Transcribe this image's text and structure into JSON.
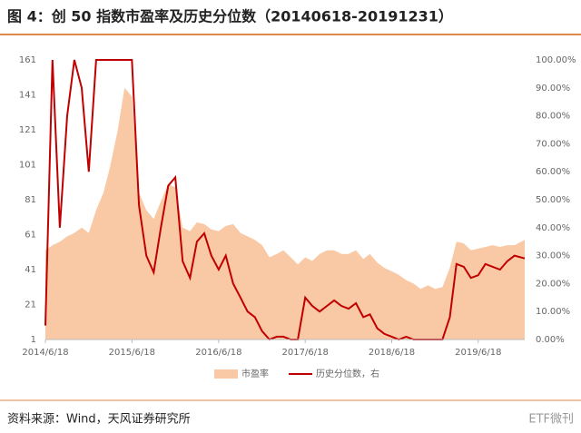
{
  "chart_data": {
    "type": "area-line",
    "title": "图 4：创 50 指数市盈率及历史分位数（20140618-20191231）",
    "source": "资料来源：Wind，天风证券研究所",
    "watermark": "ETF微刊",
    "x": [
      "2014/6/18",
      "2014/7/18",
      "2014/8/18",
      "2014/9/18",
      "2014/10/18",
      "2014/11/18",
      "2014/12/18",
      "2015/1/18",
      "2015/2/18",
      "2015/3/18",
      "2015/4/18",
      "2015/5/18",
      "2015/6/18",
      "2015/7/18",
      "2015/8/18",
      "2015/9/18",
      "2015/10/18",
      "2015/11/18",
      "2015/12/18",
      "2016/1/18",
      "2016/2/18",
      "2016/3/18",
      "2016/4/18",
      "2016/5/18",
      "2016/6/18",
      "2016/7/18",
      "2016/8/18",
      "2016/9/18",
      "2016/10/18",
      "2016/11/18",
      "2016/12/18",
      "2017/1/18",
      "2017/2/18",
      "2017/3/18",
      "2017/4/18",
      "2017/5/18",
      "2017/6/18",
      "2017/7/18",
      "2017/8/18",
      "2017/9/18",
      "2017/10/18",
      "2017/11/18",
      "2017/12/18",
      "2018/1/18",
      "2018/2/18",
      "2018/3/18",
      "2018/4/18",
      "2018/5/18",
      "2018/6/18",
      "2018/7/18",
      "2018/8/18",
      "2018/9/18",
      "2018/10/18",
      "2018/11/18",
      "2018/12/18",
      "2019/1/18",
      "2019/2/18",
      "2019/3/18",
      "2019/4/18",
      "2019/5/18",
      "2019/6/18",
      "2019/7/18",
      "2019/8/18",
      "2019/9/18",
      "2019/10/18",
      "2019/11/18",
      "2019/12/31"
    ],
    "xlim": [
      "2014/6/18",
      "2019/12/31"
    ],
    "xticks": [
      "2014/6/18",
      "2015/6/18",
      "2016/6/18",
      "2017/6/18",
      "2018/6/18",
      "2019/6/18"
    ],
    "series": [
      {
        "name": "市盈率",
        "kind": "area",
        "color": "#f9c9a5",
        "values": [
          52,
          55,
          57,
          60,
          62,
          65,
          62,
          75,
          85,
          100,
          120,
          145,
          140,
          85,
          75,
          70,
          80,
          90,
          88,
          65,
          63,
          68,
          67,
          64,
          63,
          66,
          67,
          62,
          60,
          58,
          55,
          48,
          50,
          52,
          48,
          44,
          48,
          46,
          50,
          52,
          52,
          50,
          50,
          52,
          47,
          50,
          45,
          42,
          40,
          38,
          35,
          33,
          30,
          32,
          30,
          31,
          42,
          57,
          56,
          52,
          53,
          54,
          55,
          54,
          55,
          55,
          58
        ]
      },
      {
        "name": "历史分位数，右",
        "kind": "line",
        "axis": "y2",
        "color": "#c00000",
        "values": [
          5,
          100,
          40,
          80,
          100,
          90,
          60,
          100,
          100,
          100,
          100,
          100,
          100,
          48,
          30,
          24,
          40,
          55,
          58,
          28,
          22,
          35,
          38,
          30,
          25,
          30,
          20,
          15,
          10,
          8,
          3,
          0,
          1,
          1,
          0,
          0,
          15,
          12,
          10,
          12,
          14,
          12,
          11,
          13,
          8,
          9,
          4,
          2,
          1,
          0,
          1,
          0,
          0,
          0,
          0,
          0,
          8,
          27,
          26,
          22,
          23,
          27,
          26,
          25,
          28,
          30,
          29
        ]
      }
    ],
    "ylim": [
      1,
      161
    ],
    "yticks": [
      1,
      21,
      41,
      61,
      81,
      101,
      121,
      141,
      161
    ],
    "y2lim": [
      0,
      100
    ],
    "y2ticks": [
      {
        "value": 0,
        "label": "0.00%"
      },
      {
        "value": 10,
        "label": "10.00%"
      },
      {
        "value": 20,
        "label": "20.00%"
      },
      {
        "value": 30,
        "label": "30.00%"
      },
      {
        "value": 40,
        "label": "40.00%"
      },
      {
        "value": 50,
        "label": "50.00%"
      },
      {
        "value": 60,
        "label": "60.00%"
      },
      {
        "value": 70,
        "label": "70.00%"
      },
      {
        "value": 80,
        "label": "80.00%"
      },
      {
        "value": 90,
        "label": "90.00%"
      },
      {
        "value": 100,
        "label": "100.00%"
      }
    ]
  }
}
